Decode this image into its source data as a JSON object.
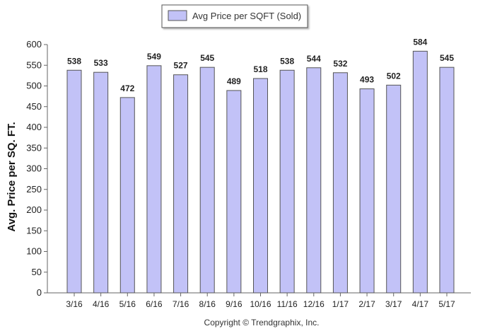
{
  "chart_data": {
    "type": "bar",
    "legend": {
      "label": "Avg Price per SQFT (Sold)",
      "placement": "top-center"
    },
    "ylabel": "Avg. Price per SQ. FT.",
    "xlabel": "",
    "categories": [
      "3/16",
      "4/16",
      "5/16",
      "6/16",
      "7/16",
      "8/16",
      "9/16",
      "10/16",
      "11/16",
      "12/16",
      "1/17",
      "2/17",
      "3/17",
      "4/17",
      "5/17"
    ],
    "values": [
      538,
      533,
      472,
      549,
      527,
      545,
      489,
      518,
      538,
      544,
      532,
      493,
      502,
      584,
      545
    ],
    "ylim": [
      0,
      600
    ],
    "yticks": [
      0,
      50,
      100,
      150,
      200,
      250,
      300,
      350,
      400,
      450,
      500,
      550,
      600
    ],
    "grid": false,
    "bar_fill": "#c2c2f7",
    "bar_stroke": "#555555",
    "label_color": "#222222"
  },
  "footer": {
    "copyright": "Copyright © Trendgraphix, Inc."
  }
}
